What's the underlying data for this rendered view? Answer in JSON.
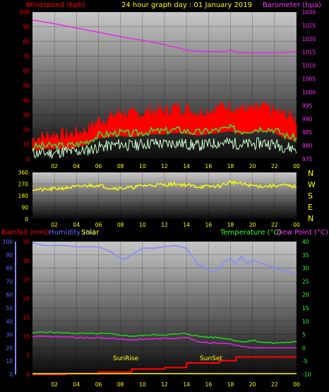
{
  "colors": {
    "windspeed": "#ff0000",
    "gust": "#ff0000",
    "avg_wind": "#33dd33",
    "light_wind": "#ccffcc",
    "barometer": "#ee22ee",
    "direction": "#ffff00",
    "rainfall": "#ff0000",
    "humidity": "#8888ff",
    "solar": "#ffff00",
    "temperature": "#22cc22",
    "dewpoint": "#dd22dd",
    "title": "#ffff00",
    "label_red": "#ff0000",
    "label_magenta": "#ff33ff",
    "label_green": "#33ff33",
    "label_blue": "#6666ff"
  },
  "header": {
    "left_label": "Windspeed (kph)",
    "title": "24 hour graph day : 01 January 2019",
    "right_label": "Barometer (hpa)"
  },
  "bottom_header": {
    "rain_label": "Rainfall (mm)",
    "humidity_label": "Humidity (%)",
    "solar_label": "Solar",
    "temp_label": "Temperature (°C)",
    "dew_label": "Dew Point (°C)"
  },
  "compass": [
    "N",
    "W",
    "S",
    "E",
    "N"
  ],
  "x_ticks": [
    "02",
    "04",
    "06",
    "08",
    "10",
    "12",
    "14",
    "16",
    "18",
    "20",
    "22",
    "00"
  ],
  "annotations": {
    "sunrise": "SunRise",
    "sunset": "SunSet"
  },
  "chart_data": [
    {
      "type": "line",
      "name": "wind-barometer",
      "x_range": [
        0,
        24
      ],
      "ylim_left": [
        0,
        100
      ],
      "y_ticks_left": [
        "0",
        "10",
        "20",
        "30",
        "40",
        "50",
        "60",
        "70",
        "80",
        "90",
        "100"
      ],
      "ylim_right": [
        975,
        1030
      ],
      "y_ticks_right": [
        "975",
        "980",
        "985",
        "990",
        "995",
        "1000",
        "1005",
        "1010",
        "1015",
        "1020",
        "1025",
        "1030"
      ],
      "series": [
        {
          "key": "barometer",
          "axis": "right",
          "x": [
            0,
            1,
            2,
            3,
            4,
            5,
            6,
            7,
            8,
            9,
            10,
            11,
            12,
            13,
            14,
            15,
            16,
            17,
            17.5,
            18,
            18.5,
            19,
            20,
            21,
            22,
            23,
            24
          ],
          "values": [
            1027,
            1026.3,
            1025.6,
            1024.8,
            1024,
            1023.2,
            1022.4,
            1021.6,
            1020.8,
            1020,
            1019.4,
            1018.6,
            1017.8,
            1016.8,
            1015.7,
            1015.3,
            1015.2,
            1015.2,
            1015.0,
            1015.8,
            1015.0,
            1014.8,
            1014.8,
            1014.7,
            1014.8,
            1014.9,
            1015.2
          ]
        },
        {
          "key": "gust",
          "axis": "left",
          "x": [
            0,
            1,
            2,
            3,
            4,
            5,
            6,
            7,
            8,
            9,
            10,
            11,
            12,
            13,
            14,
            15,
            16,
            17,
            18,
            19,
            20,
            21,
            22,
            23,
            24
          ],
          "values": [
            12,
            13,
            15,
            14,
            16,
            18,
            24,
            26,
            30,
            28,
            29,
            31,
            30,
            33,
            32,
            30,
            31,
            33,
            34,
            32,
            31,
            33,
            30,
            28,
            25
          ]
        },
        {
          "key": "avg_wind",
          "axis": "left",
          "x": [
            0,
            1,
            2,
            3,
            4,
            5,
            6,
            7,
            8,
            9,
            10,
            11,
            12,
            13,
            14,
            15,
            16,
            17,
            18,
            19,
            20,
            21,
            22,
            23,
            24
          ],
          "values": [
            8,
            9,
            9,
            9,
            10,
            12,
            16,
            17,
            18,
            17,
            18,
            19,
            19,
            20,
            19,
            18,
            19,
            20,
            21,
            19,
            20,
            21,
            20,
            16,
            14
          ]
        },
        {
          "key": "light_wind",
          "axis": "left",
          "x": [
            0,
            1,
            2,
            3,
            4,
            5,
            6,
            7,
            8,
            9,
            10,
            11,
            12,
            13,
            14,
            15,
            16,
            17,
            18,
            19,
            20,
            21,
            22,
            23,
            24
          ],
          "values": [
            4,
            4,
            4,
            5,
            5,
            6,
            8,
            9,
            10,
            9,
            10,
            11,
            10,
            11,
            10,
            9,
            10,
            11,
            11,
            10,
            10,
            11,
            10,
            8,
            7
          ]
        }
      ]
    },
    {
      "type": "line",
      "name": "wind-direction",
      "x_range": [
        0,
        24
      ],
      "ylim": [
        0,
        360
      ],
      "y_ticks": [
        "0",
        "90",
        "180",
        "270",
        "360"
      ],
      "series": [
        {
          "key": "direction",
          "x": [
            0,
            1,
            2,
            3,
            4,
            5,
            6,
            7,
            8,
            9,
            10,
            11,
            12,
            13,
            14,
            15,
            16,
            17,
            18,
            19,
            20,
            21,
            22,
            23,
            24
          ],
          "values": [
            230,
            225,
            232,
            240,
            248,
            258,
            262,
            240,
            238,
            242,
            258,
            262,
            264,
            270,
            262,
            250,
            250,
            255,
            285,
            270,
            258,
            252,
            258,
            258,
            250
          ]
        }
      ]
    },
    {
      "type": "line",
      "name": "rain-humidity-temperature",
      "x_range": [
        0,
        24
      ],
      "ylim_humidity": [
        0,
        100
      ],
      "y_ticks_humidity": [
        "0",
        "10",
        "20",
        "30",
        "40",
        "50",
        "60",
        "70",
        "80",
        "90",
        "100"
      ],
      "ylim_rain": [
        0,
        35
      ],
      "y_ticks_rain": [
        "0",
        "5",
        "10",
        "15",
        "20",
        "25",
        "30",
        "35"
      ],
      "ylim_temp": [
        -10,
        40
      ],
      "y_ticks_temp": [
        "-10",
        "-5",
        "0",
        "5",
        "10",
        "15",
        "20",
        "25",
        "30",
        "35",
        "40"
      ],
      "series": [
        {
          "key": "humidity",
          "axis": "humidity",
          "x": [
            0,
            1,
            2,
            3,
            4,
            5,
            6,
            7,
            8,
            8.5,
            9,
            10,
            11,
            12,
            13,
            14,
            15,
            16,
            16.5,
            17,
            17.5,
            18,
            18.5,
            19,
            19.5,
            20,
            21,
            22,
            23,
            24
          ],
          "values": [
            99,
            97,
            97,
            97,
            96,
            96,
            96,
            93,
            87,
            87,
            90,
            95,
            95,
            96,
            97,
            95,
            83,
            79,
            77,
            80,
            85,
            87,
            83,
            89,
            83,
            86,
            83,
            80,
            78,
            76
          ]
        },
        {
          "key": "temperature",
          "axis": "temp",
          "x": [
            0,
            1,
            2,
            3,
            4,
            5,
            6,
            7,
            8,
            9,
            10,
            11,
            12,
            13,
            14,
            15,
            16,
            17,
            18,
            19,
            20,
            21,
            22,
            23,
            24
          ],
          "values": [
            5.5,
            6,
            5.8,
            5.6,
            5.4,
            5.3,
            5.3,
            5.2,
            4.8,
            4.4,
            4.6,
            4.9,
            4.9,
            5.1,
            5.3,
            4.4,
            4.0,
            3.8,
            3.2,
            2.2,
            2.8,
            2.0,
            1.8,
            2.0,
            2.2
          ]
        },
        {
          "key": "dewpoint",
          "axis": "temp",
          "x": [
            0,
            1,
            2,
            3,
            4,
            5,
            6,
            7,
            8,
            9,
            10,
            11,
            12,
            13,
            14,
            15,
            16,
            17,
            18,
            19,
            20,
            21,
            22,
            23,
            24
          ],
          "values": [
            4.2,
            4.4,
            4.2,
            4.0,
            3.8,
            3.7,
            3.7,
            3.6,
            3.3,
            3.0,
            3.2,
            3.4,
            3.5,
            3.7,
            3.9,
            2.4,
            2.0,
            1.8,
            1.5,
            0.5,
            -0.2,
            -0.8,
            -1.2,
            -1.5,
            -1.8
          ]
        },
        {
          "key": "rainfall",
          "axis": "rain",
          "x": [
            0,
            3,
            3.01,
            6,
            6.01,
            9,
            9.01,
            12,
            12.01,
            14,
            14.01,
            17,
            17.01,
            18.5,
            18.51,
            24
          ],
          "values": [
            0,
            0,
            0.2,
            0.2,
            0.6,
            0.6,
            1.4,
            1.4,
            1.8,
            1.8,
            3.0,
            3.0,
            3.6,
            3.6,
            4.6,
            4.6
          ]
        }
      ]
    }
  ]
}
